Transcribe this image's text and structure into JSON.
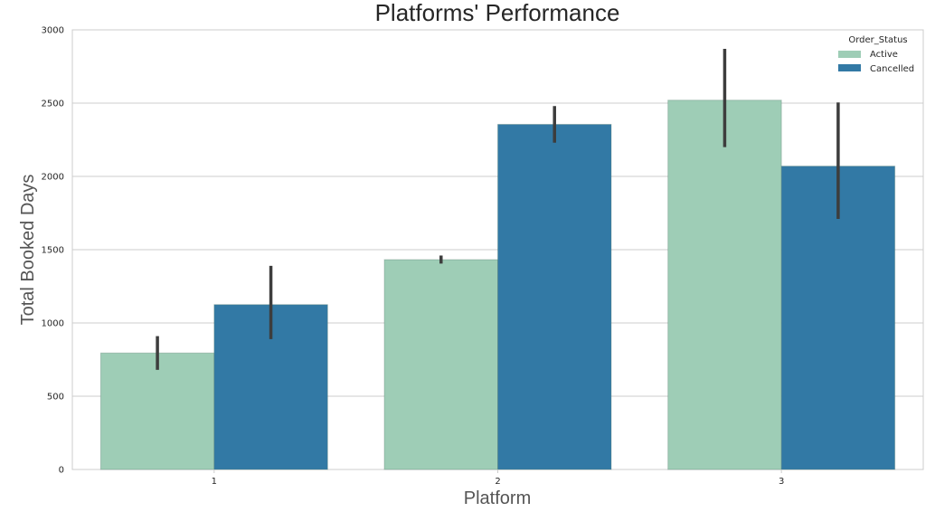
{
  "chart_data": {
    "type": "bar",
    "title": "Platforms' Performance",
    "xlabel": "Platform",
    "ylabel": "Total Booked Days",
    "categories": [
      "1",
      "2",
      "3"
    ],
    "ylim": [
      0,
      3000
    ],
    "yticks": [
      0,
      500,
      1000,
      1500,
      2000,
      2500,
      3000
    ],
    "grid": true,
    "legend": {
      "title": "Order_Status",
      "placement": "top-right"
    },
    "series": [
      {
        "name": "Active",
        "color": "#9ecdb6",
        "values": [
          795,
          1432,
          2520
        ],
        "error_low": [
          680,
          1405,
          2200
        ],
        "error_high": [
          910,
          1460,
          2870
        ]
      },
      {
        "name": "Cancelled",
        "color": "#3279a5",
        "values": [
          1125,
          2355,
          2070
        ],
        "error_low": [
          890,
          2230,
          1710
        ],
        "error_high": [
          1390,
          2480,
          2505
        ]
      }
    ]
  }
}
